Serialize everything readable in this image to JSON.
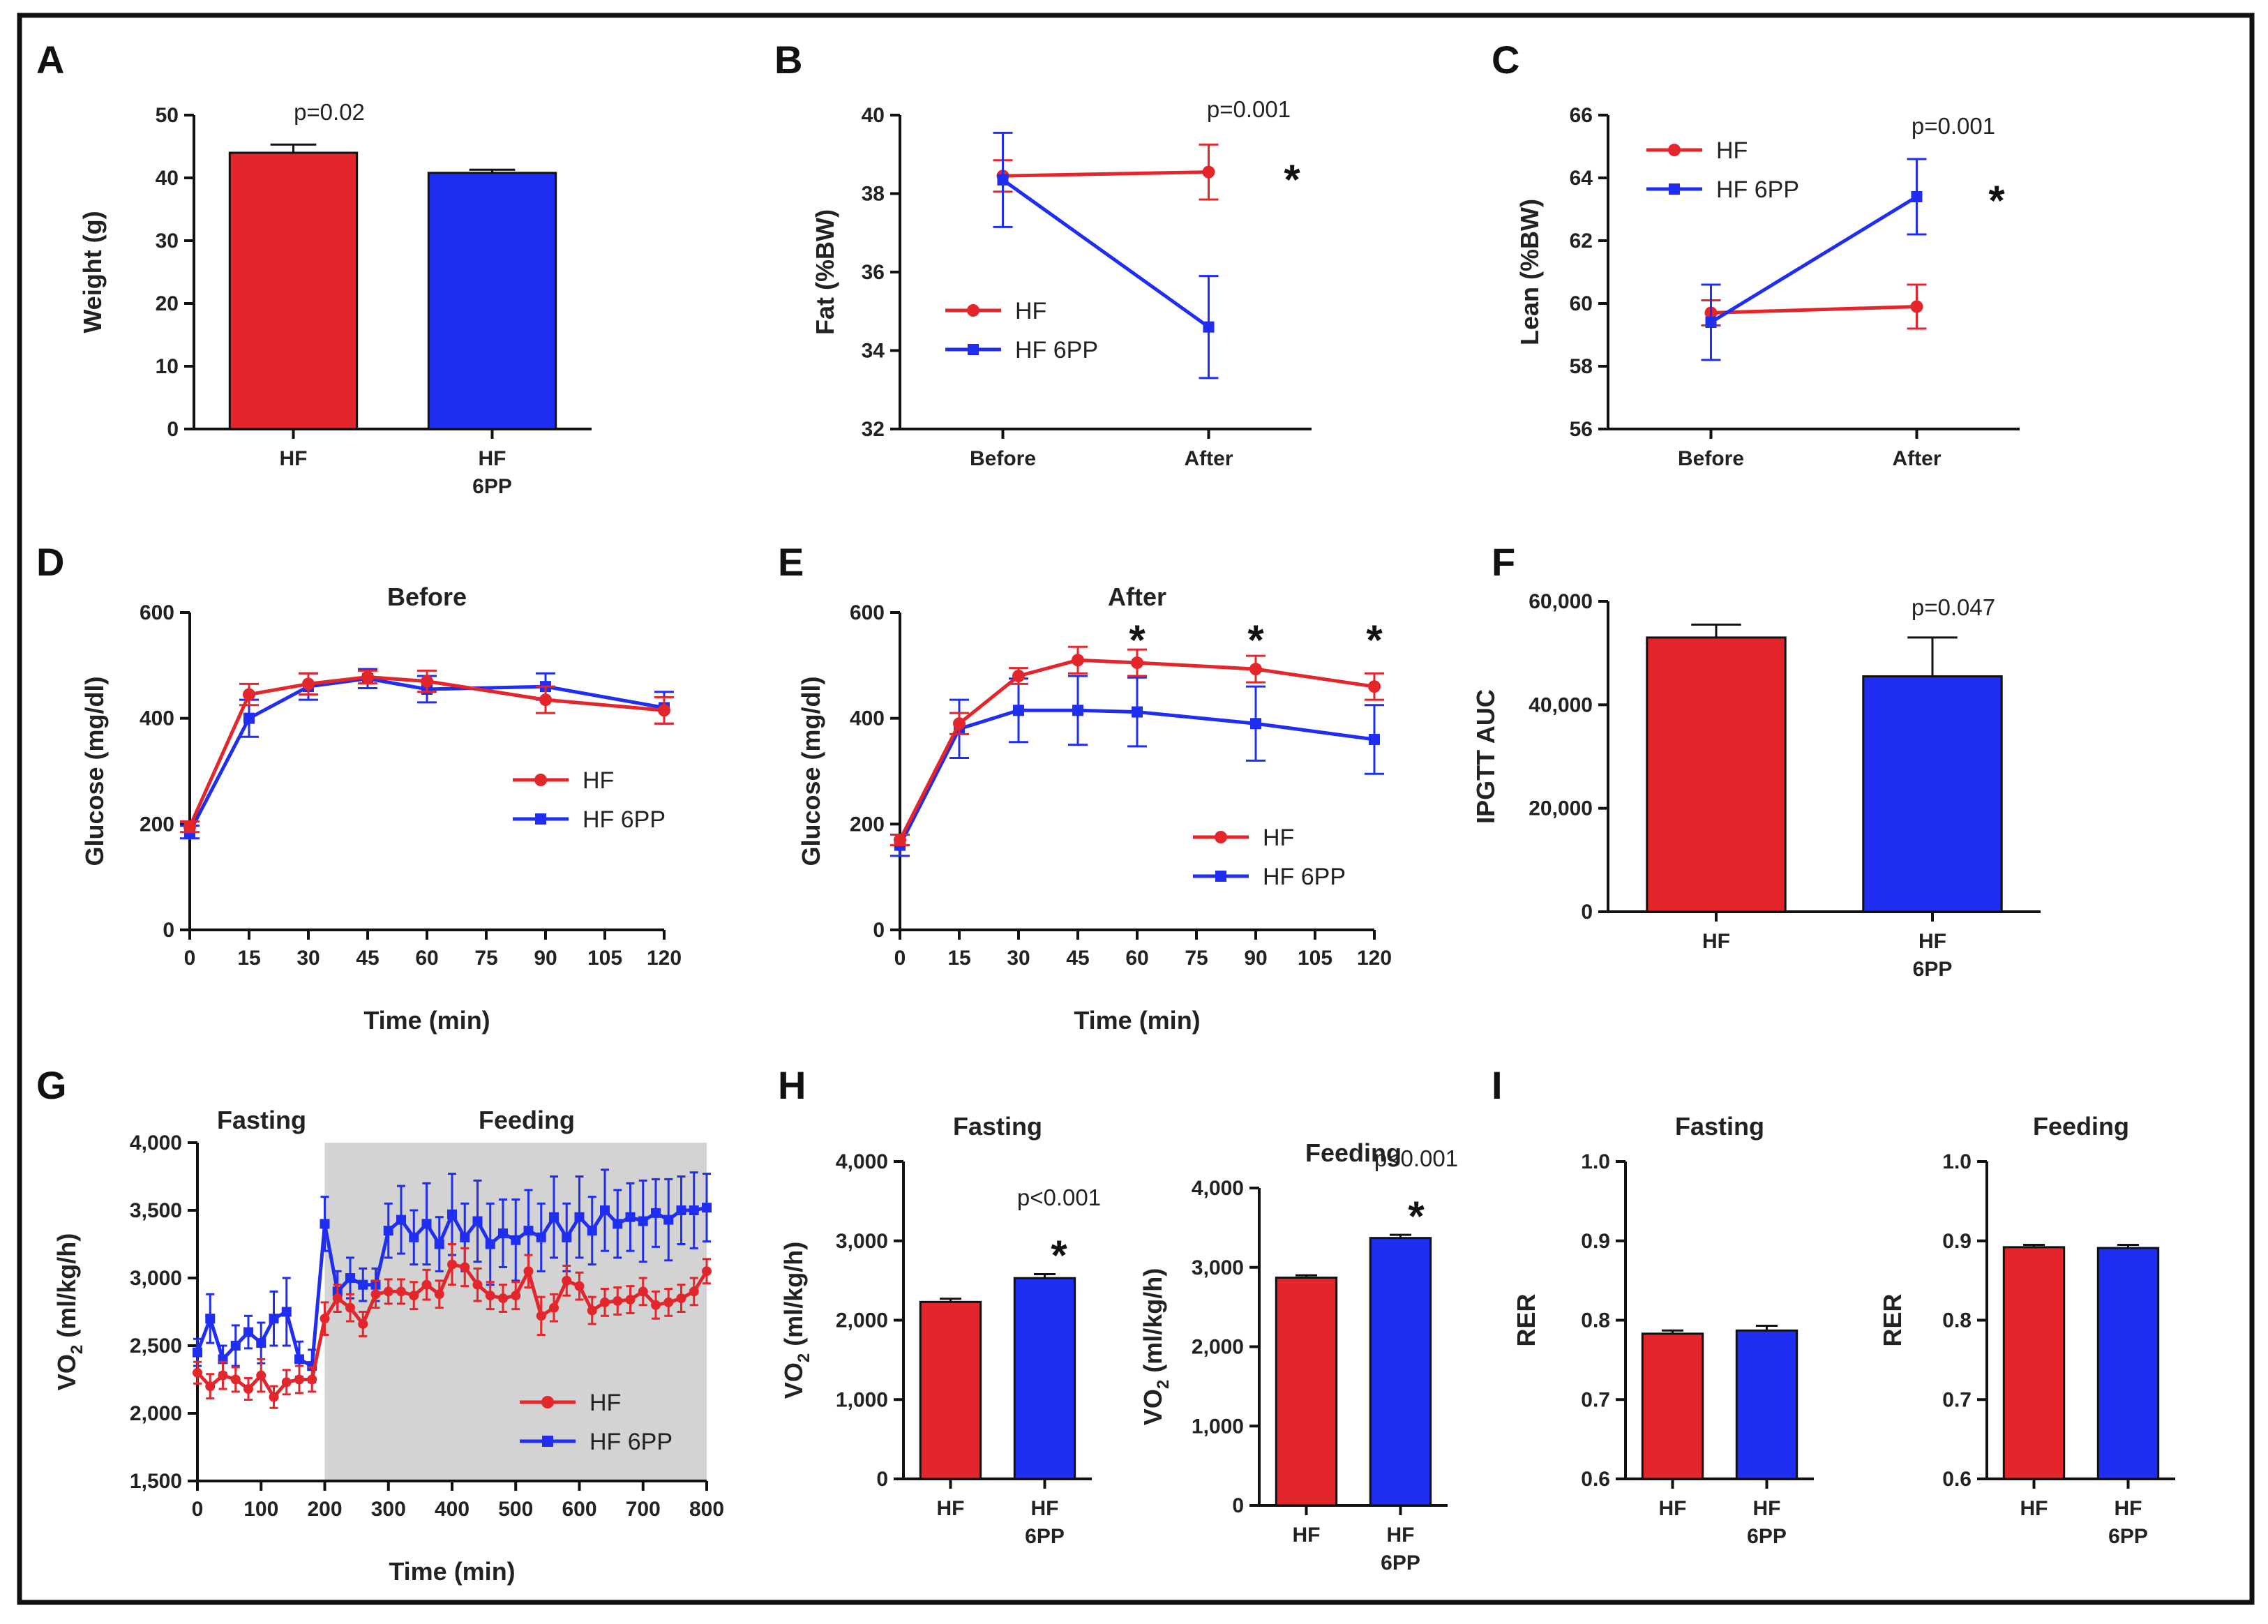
{
  "colors": {
    "hf": "#e3262b",
    "hf6pp": "#1f2ef0",
    "shade": "#d3d3d3"
  },
  "panels": {
    "A": {
      "label": "A",
      "pvalue": "p=0.02"
    },
    "B": {
      "label": "B",
      "pvalue": "p=0.001",
      "star": "*"
    },
    "C": {
      "label": "C",
      "pvalue": "p=0.001",
      "star": "*"
    },
    "D": {
      "label": "D"
    },
    "E": {
      "label": "E",
      "star": "*"
    },
    "F": {
      "label": "F",
      "pvalue": "p=0.047"
    },
    "G": {
      "label": "G",
      "region_fasting": "Fasting",
      "region_feeding": "Feeding"
    },
    "H": {
      "label": "H",
      "pvalue_fasting": "p<0.001",
      "pvalue_feeding": "p<0.001",
      "star": "*"
    },
    "I": {
      "label": "I"
    }
  },
  "chart_data": [
    {
      "id": "A",
      "type": "bar",
      "title": "",
      "ylabel": "Weight (g)",
      "xlabel": "",
      "categories": [
        "HF",
        "HF 6PP"
      ],
      "values": [
        44.0,
        40.8
      ],
      "errors": [
        1.3,
        0.5
      ],
      "ylim": [
        0,
        50
      ],
      "yticks": [
        0,
        10,
        20,
        30,
        40,
        50
      ]
    },
    {
      "id": "B",
      "type": "line",
      "title": "",
      "ylabel": "Fat (%BW)",
      "xlabel": "",
      "categories": [
        "Before",
        "After"
      ],
      "ylim": [
        32,
        40
      ],
      "yticks": [
        32,
        34,
        36,
        38,
        40
      ],
      "legend_position": "center-left",
      "series": [
        {
          "name": "HF",
          "values": [
            38.45,
            38.55
          ],
          "errors": [
            0.4,
            0.7
          ]
        },
        {
          "name": "HF 6PP",
          "values": [
            38.35,
            34.6
          ],
          "errors": [
            1.2,
            1.3
          ]
        }
      ]
    },
    {
      "id": "C",
      "type": "line",
      "title": "",
      "ylabel": "Lean (%BW)",
      "xlabel": "",
      "categories": [
        "Before",
        "After"
      ],
      "ylim": [
        56,
        66
      ],
      "yticks": [
        56,
        58,
        60,
        62,
        64,
        66
      ],
      "legend_position": "top-left",
      "series": [
        {
          "name": "HF",
          "values": [
            59.7,
            59.9
          ],
          "errors": [
            0.4,
            0.7
          ]
        },
        {
          "name": "HF 6PP",
          "values": [
            59.4,
            63.4
          ],
          "errors": [
            1.2,
            1.2
          ]
        }
      ]
    },
    {
      "id": "D",
      "type": "line",
      "title": "Before",
      "ylabel": "Glucose (mg/dl)",
      "xlabel": "Time (min)",
      "x": [
        0,
        15,
        30,
        45,
        60,
        90,
        120
      ],
      "xlim": [
        0,
        120
      ],
      "xticks": [
        0,
        15,
        30,
        45,
        60,
        75,
        90,
        105,
        120
      ],
      "ylim": [
        0,
        600
      ],
      "yticks": [
        0,
        200,
        400,
        600
      ],
      "legend_position": "bottom-right",
      "series": [
        {
          "name": "HF",
          "values": [
            195,
            445,
            465,
            478,
            470,
            435,
            415
          ],
          "errors": [
            10,
            20,
            20,
            12,
            20,
            25,
            25
          ]
        },
        {
          "name": "HF 6PP",
          "values": [
            185,
            400,
            460,
            475,
            455,
            460,
            420
          ],
          "errors": [
            12,
            35,
            25,
            18,
            25,
            25,
            30
          ]
        }
      ]
    },
    {
      "id": "E",
      "type": "line",
      "title": "After",
      "ylabel": "Glucose (mg/dl)",
      "xlabel": "Time (min)",
      "x": [
        0,
        15,
        30,
        45,
        60,
        90,
        120
      ],
      "xlim": [
        0,
        120
      ],
      "xticks": [
        0,
        15,
        30,
        45,
        60,
        75,
        90,
        105,
        120
      ],
      "ylim": [
        0,
        600
      ],
      "yticks": [
        0,
        200,
        400,
        600
      ],
      "legend_position": "bottom-right",
      "star_x": [
        60,
        90,
        120
      ],
      "series": [
        {
          "name": "HF",
          "values": [
            170,
            390,
            480,
            510,
            505,
            493,
            460
          ],
          "errors": [
            10,
            20,
            15,
            25,
            25,
            25,
            25
          ]
        },
        {
          "name": "HF 6PP",
          "values": [
            160,
            380,
            415,
            415,
            412,
            390,
            360
          ],
          "errors": [
            20,
            55,
            60,
            65,
            65,
            70,
            65
          ]
        }
      ]
    },
    {
      "id": "F",
      "type": "bar",
      "title": "",
      "ylabel": "IPGTT AUC",
      "xlabel": "",
      "categories": [
        "HF",
        "HF 6PP"
      ],
      "values": [
        53000,
        45500
      ],
      "errors": [
        2500,
        7500
      ],
      "ylim": [
        0,
        60000
      ],
      "yticks": [
        0,
        20000,
        40000,
        60000
      ],
      "ytick_labels": [
        "0",
        "20,000",
        "40,000",
        "60,000"
      ]
    },
    {
      "id": "G",
      "type": "line",
      "title": "",
      "ylabel": "VO2 (ml/kg/h)",
      "xlabel": "Time (min)",
      "xlim": [
        0,
        800
      ],
      "xticks": [
        0,
        100,
        200,
        300,
        400,
        500,
        600,
        700,
        800
      ],
      "ylim": [
        1500,
        4000
      ],
      "yticks": [
        1500,
        2000,
        2500,
        3000,
        3500,
        4000
      ],
      "ytick_labels": [
        "1,500",
        "2,000",
        "2,500",
        "3,000",
        "3,500",
        "4,000"
      ],
      "shade_x": [
        200,
        800
      ],
      "legend_position": "bottom-right",
      "x": [
        0,
        20,
        40,
        60,
        80,
        100,
        120,
        140,
        160,
        180,
        200,
        220,
        240,
        260,
        280,
        300,
        320,
        340,
        360,
        380,
        400,
        420,
        440,
        460,
        480,
        500,
        520,
        540,
        560,
        580,
        600,
        620,
        640,
        660,
        680,
        700,
        720,
        740,
        760,
        780,
        800
      ],
      "series": [
        {
          "name": "HF",
          "values": [
            2300,
            2200,
            2280,
            2250,
            2180,
            2280,
            2120,
            2230,
            2250,
            2250,
            2700,
            2850,
            2780,
            2660,
            2880,
            2900,
            2900,
            2870,
            2950,
            2880,
            3100,
            3080,
            2950,
            2870,
            2850,
            2870,
            3050,
            2720,
            2780,
            2980,
            2940,
            2760,
            2820,
            2830,
            2840,
            2900,
            2800,
            2820,
            2850,
            2900,
            3050
          ],
          "errors": [
            80,
            90,
            100,
            90,
            80,
            120,
            80,
            90,
            100,
            90,
            120,
            100,
            100,
            90,
            100,
            90,
            90,
            100,
            110,
            100,
            150,
            140,
            120,
            100,
            100,
            100,
            120,
            140,
            100,
            110,
            100,
            100,
            100,
            100,
            100,
            100,
            100,
            100,
            100,
            100,
            90
          ]
        },
        {
          "name": "HF 6PP",
          "values": [
            2450,
            2700,
            2400,
            2500,
            2600,
            2520,
            2700,
            2750,
            2400,
            2350,
            3400,
            2900,
            3000,
            2950,
            2950,
            3350,
            3430,
            3300,
            3400,
            3250,
            3470,
            3300,
            3420,
            3250,
            3330,
            3280,
            3350,
            3300,
            3450,
            3300,
            3450,
            3350,
            3500,
            3400,
            3450,
            3420,
            3480,
            3430,
            3500,
            3500,
            3520
          ],
          "errors": [
            100,
            180,
            100,
            150,
            120,
            150,
            200,
            250,
            130,
            120,
            200,
            150,
            150,
            120,
            120,
            200,
            250,
            200,
            300,
            200,
            300,
            250,
            300,
            300,
            250,
            300,
            300,
            250,
            300,
            250,
            300,
            250,
            300,
            250,
            250,
            300,
            250,
            300,
            250,
            280,
            250
          ]
        }
      ]
    },
    {
      "id": "H1",
      "type": "bar",
      "title": "Fasting",
      "ylabel": "VO2 (ml/kg/h)",
      "xlabel": "",
      "categories": [
        "HF",
        "HF 6PP"
      ],
      "values": [
        2230,
        2530
      ],
      "errors": [
        40,
        50
      ],
      "ylim": [
        0,
        4000
      ],
      "yticks": [
        0,
        1000,
        2000,
        3000,
        4000
      ],
      "ytick_labels": [
        "0",
        "1,000",
        "2,000",
        "3,000",
        "4,000"
      ]
    },
    {
      "id": "H2",
      "type": "bar",
      "title": "Feeding",
      "ylabel": "VO2 (ml/kg/h)",
      "xlabel": "",
      "categories": [
        "HF",
        "HF 6PP"
      ],
      "values": [
        2870,
        3370
      ],
      "errors": [
        30,
        40
      ],
      "ylim": [
        0,
        4000
      ],
      "yticks": [
        0,
        1000,
        2000,
        3000,
        4000
      ],
      "ytick_labels": [
        "0",
        "1,000",
        "2,000",
        "3,000",
        "4,000"
      ]
    },
    {
      "id": "I1",
      "type": "bar",
      "title": "Fasting",
      "ylabel": "RER",
      "xlabel": "",
      "categories": [
        "HF",
        "HF 6PP"
      ],
      "values": [
        0.783,
        0.787
      ],
      "errors": [
        0.004,
        0.006
      ],
      "ylim": [
        0.6,
        1.0
      ],
      "yticks": [
        0.6,
        0.7,
        0.8,
        0.9,
        1.0
      ],
      "ytick_labels": [
        "0.6",
        "0.7",
        "0.8",
        "0.9",
        "1.0"
      ]
    },
    {
      "id": "I2",
      "type": "bar",
      "title": "Feeding",
      "ylabel": "RER",
      "xlabel": "",
      "categories": [
        "HF",
        "HF 6PP"
      ],
      "values": [
        0.892,
        0.891
      ],
      "errors": [
        0.003,
        0.004
      ],
      "ylim": [
        0.6,
        1.0
      ],
      "yticks": [
        0.6,
        0.7,
        0.8,
        0.9,
        1.0
      ],
      "ytick_labels": [
        "0.6",
        "0.7",
        "0.8",
        "0.9",
        "1.0"
      ]
    }
  ]
}
